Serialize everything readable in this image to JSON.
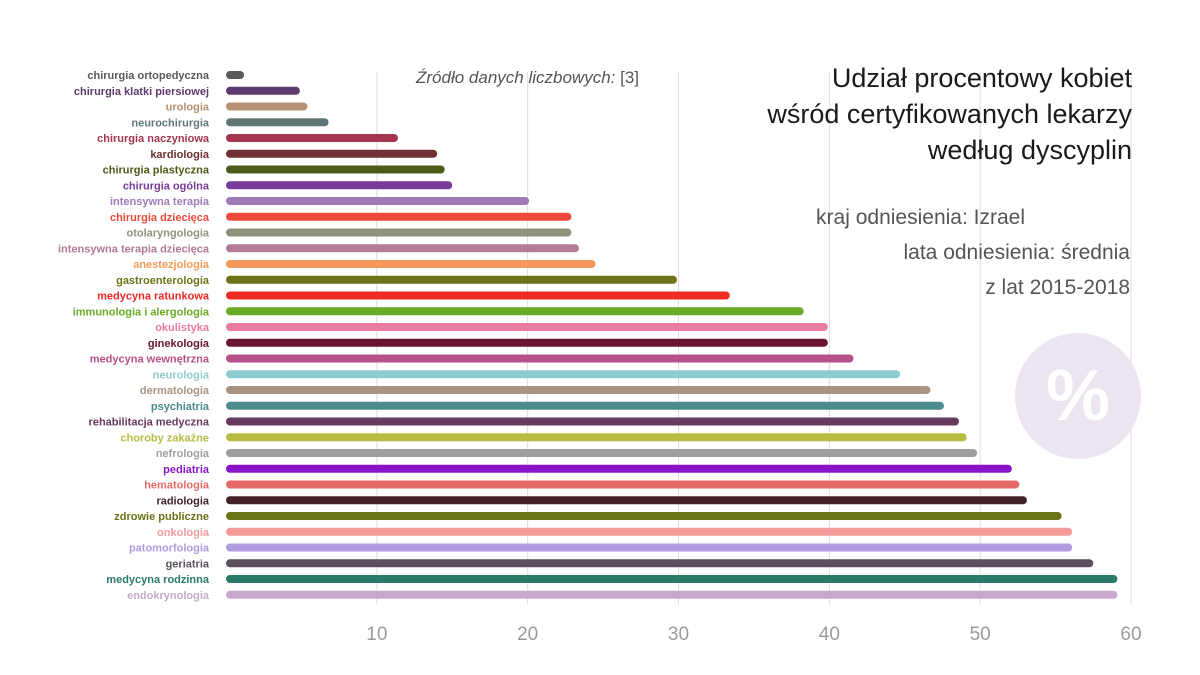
{
  "title": "Udział procentowy kobiet\nwśród certyfikowanych lekarzy\nwedług dyscyplin",
  "source": {
    "label": "Źródło danych liczbowych:",
    "ref": "[3]"
  },
  "meta": {
    "country": "kraj odniesienia: Izrael",
    "years_1": "lata odniesienia: średnia",
    "years_2": "z lat 2015-2018"
  },
  "badge": {
    "symbol": "%",
    "color": "#ece5ef"
  },
  "chart_data": {
    "type": "bar",
    "orientation": "horizontal",
    "xlim": [
      0,
      60
    ],
    "xticks": [
      10,
      20,
      30,
      40,
      50,
      60
    ],
    "grid": true,
    "bars": [
      {
        "label": "chirurgia ortopedyczna",
        "value": 1.2,
        "color": "#5a5a5a"
      },
      {
        "label": "chirurgia klatki piersiowej",
        "value": 4.9,
        "color": "#5e3a6e"
      },
      {
        "label": "urologia",
        "value": 5.4,
        "color": "#b89170"
      },
      {
        "label": "neurochirurgia",
        "value": 6.8,
        "color": "#607777"
      },
      {
        "label": "chirurgia naczyniowa",
        "value": 11.4,
        "color": "#a33550"
      },
      {
        "label": "kardiologia",
        "value": 14.0,
        "color": "#6e3030"
      },
      {
        "label": "chirurgia plastyczna",
        "value": 14.5,
        "color": "#4c5a1a"
      },
      {
        "label": "chirurgia ogólna",
        "value": 15.0,
        "color": "#7a3a9a"
      },
      {
        "label": "intensywna terapia",
        "value": 20.1,
        "color": "#a07ab8"
      },
      {
        "label": "chirurgia dziecięca",
        "value": 22.9,
        "color": "#ee4a3a"
      },
      {
        "label": "otolaryngologia",
        "value": 22.9,
        "color": "#8f937a"
      },
      {
        "label": "intensywna terapia dziecięca",
        "value": 23.4,
        "color": "#b07a98"
      },
      {
        "label": "anestezjologia",
        "value": 24.5,
        "color": "#f39a5a"
      },
      {
        "label": "gastroenterologia",
        "value": 29.9,
        "color": "#6e7318"
      },
      {
        "label": "medycyna ratunkowa",
        "value": 33.4,
        "color": "#f02a25"
      },
      {
        "label": "immunologia i alergologia",
        "value": 38.3,
        "color": "#6aaa25"
      },
      {
        "label": "okulistyka",
        "value": 39.9,
        "color": "#e87ba0"
      },
      {
        "label": "ginekologia",
        "value": 39.9,
        "color": "#6a1530"
      },
      {
        "label": "medycyna wewnętrzna",
        "value": 41.6,
        "color": "#b8508a"
      },
      {
        "label": "neurologia",
        "value": 44.7,
        "color": "#8ecbce"
      },
      {
        "label": "dermatologia",
        "value": 46.7,
        "color": "#a99484"
      },
      {
        "label": "psychiatria",
        "value": 47.6,
        "color": "#4d8a8d"
      },
      {
        "label": "rehabilitacja medyczna",
        "value": 48.6,
        "color": "#653a5e"
      },
      {
        "label": "choroby zakaźne",
        "value": 49.1,
        "color": "#b7bb42"
      },
      {
        "label": "nefrologia",
        "value": 49.8,
        "color": "#9e9e9e"
      },
      {
        "label": "pediatria",
        "value": 52.1,
        "color": "#8a15c8"
      },
      {
        "label": "hematologia",
        "value": 52.6,
        "color": "#e66a6a"
      },
      {
        "label": "radiologia",
        "value": 53.1,
        "color": "#43232a"
      },
      {
        "label": "zdrowie publiczne",
        "value": 55.4,
        "color": "#6a7318"
      },
      {
        "label": "onkologia",
        "value": 56.1,
        "color": "#f59a9a"
      },
      {
        "label": "patomorfologia",
        "value": 56.1,
        "color": "#b09ae0"
      },
      {
        "label": "geriatria",
        "value": 57.5,
        "color": "#5a5060"
      },
      {
        "label": "medycyna rodzinna",
        "value": 59.1,
        "color": "#2a7a6a"
      },
      {
        "label": "endokrynologia",
        "value": 59.1,
        "color": "#c7a9cc"
      }
    ]
  }
}
